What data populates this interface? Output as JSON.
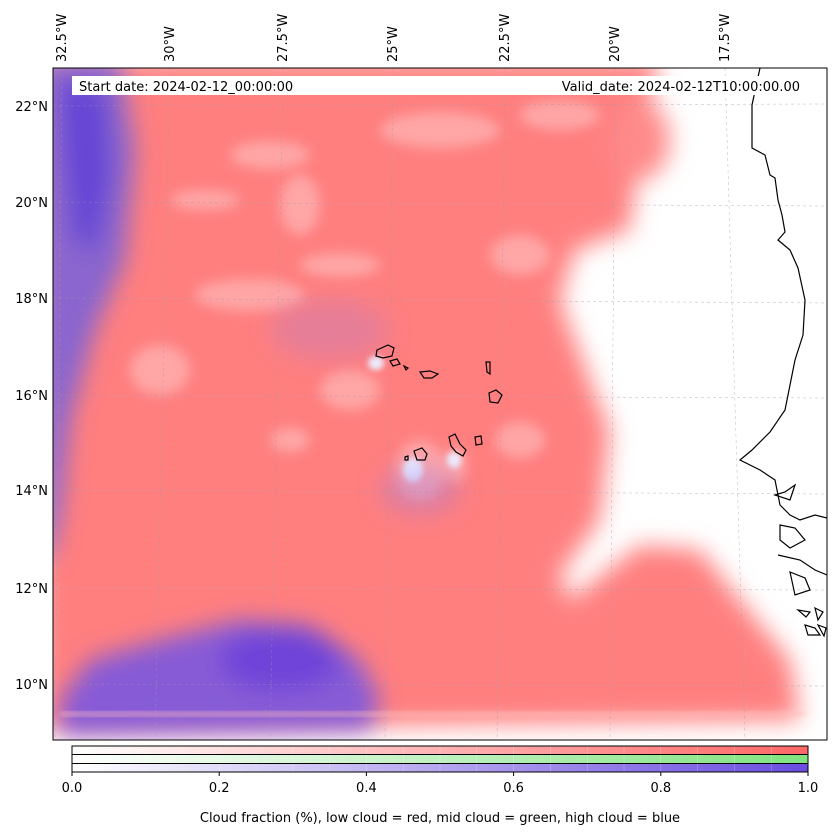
{
  "map": {
    "lon_labels": [
      "32.5°W",
      "30°W",
      "27.5°W",
      "25°W",
      "22.5°W",
      "20°W",
      "17.5°W"
    ],
    "lat_labels": [
      "22°N",
      "20°N",
      "18°N",
      "16°N",
      "14°N",
      "12°N",
      "10°N"
    ],
    "start_date": "Start date: 2024-02-12_00:00:00",
    "valid_date": "Valid_date: 2024-02-12T10:00:00.00",
    "colors": {
      "low_cloud": "#ff7f7f",
      "mid_cloud": "#80f080",
      "high_cloud": "#7050e0",
      "coastline": "#000000"
    },
    "layers": [
      "low-cloud",
      "mid-cloud",
      "high-cloud"
    ],
    "grid": true
  },
  "colorbar": {
    "tick_labels": [
      "0.0",
      "0.2",
      "0.4",
      "0.6",
      "0.8",
      "1.0"
    ],
    "range": [
      0.0,
      1.0
    ],
    "label": "Cloud fraction (%), low cloud = red, mid cloud = green, high cloud = blue"
  }
}
